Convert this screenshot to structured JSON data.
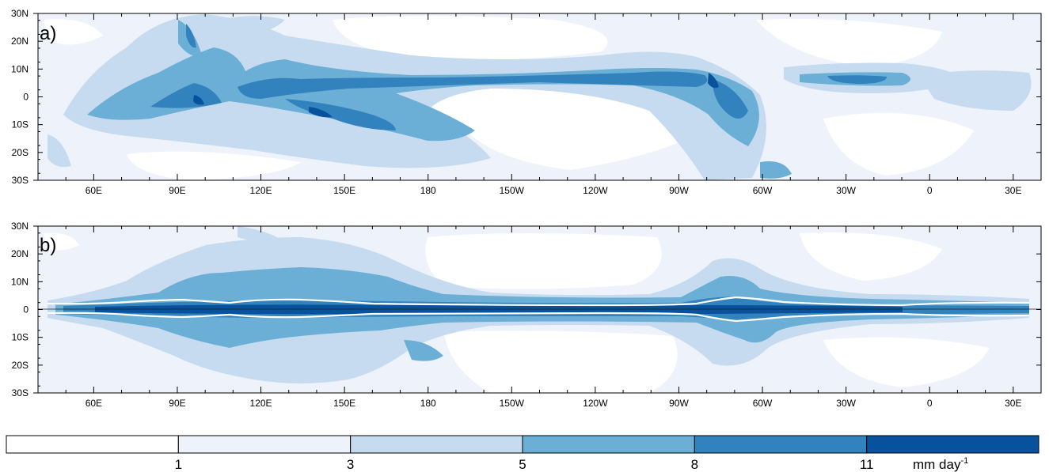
{
  "panels": [
    {
      "label": "a)",
      "lat_ticks": [
        "30N",
        "20N",
        "10N",
        "0",
        "10S",
        "20S",
        "30S"
      ],
      "lon_ticks": [
        "60E",
        "90E",
        "120E",
        "150E",
        "180",
        "150W",
        "120W",
        "90W",
        "60W",
        "30W",
        "0",
        "30E"
      ]
    },
    {
      "label": "b)",
      "lat_ticks": [
        "30N",
        "20N",
        "10N",
        "0",
        "10S",
        "20S",
        "30S"
      ],
      "lon_ticks": [
        "60E",
        "90E",
        "120E",
        "150E",
        "180",
        "150W",
        "120W",
        "90W",
        "60W",
        "30W",
        "0",
        "30E"
      ]
    }
  ],
  "colorbar": {
    "levels": [
      "1",
      "3",
      "5",
      "8",
      "11"
    ],
    "units_main": "mm day",
    "units_sup": "-1",
    "colors": [
      "#ffffff",
      "#eef3fb",
      "#c6dbef",
      "#6baed6",
      "#3182bd",
      "#08519c"
    ]
  },
  "map_data": {
    "type": "filled-contour-map",
    "lon_range": [
      "40E",
      "40E"
    ],
    "lat_range": [
      "30S",
      "30N"
    ]
  }
}
